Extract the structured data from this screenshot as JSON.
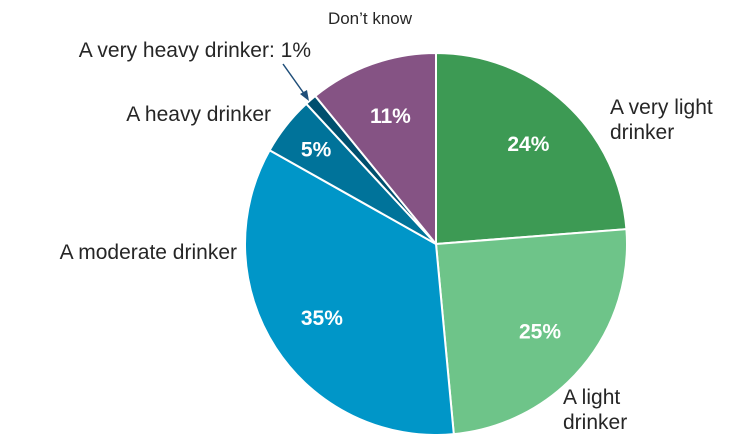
{
  "chart_data": {
    "type": "pie",
    "title": "",
    "categories": [
      "A very light drinker",
      "A light drinker",
      "A moderate drinker",
      "A heavy drinker",
      "A very heavy drinker",
      "Don’t know"
    ],
    "values": [
      24,
      25,
      35,
      5,
      1,
      11
    ],
    "data_labels": [
      "24%",
      "25%",
      "35%",
      "5%",
      "",
      "11%"
    ],
    "category_labels": [
      [
        "A very light",
        "drinker"
      ],
      [
        "A light",
        "drinker"
      ],
      [
        "A moderate drinker"
      ],
      [
        "A heavy drinker"
      ],
      [
        "A very heavy drinker: 1%"
      ],
      [
        "Don’t know"
      ]
    ],
    "colors": [
      "#3d9a54",
      "#6ec489",
      "#0096c8",
      "#00739a",
      "#004f6e",
      "#855384"
    ],
    "start_angle": "12 o'clock",
    "direction": "clockwise",
    "legend": "none"
  }
}
